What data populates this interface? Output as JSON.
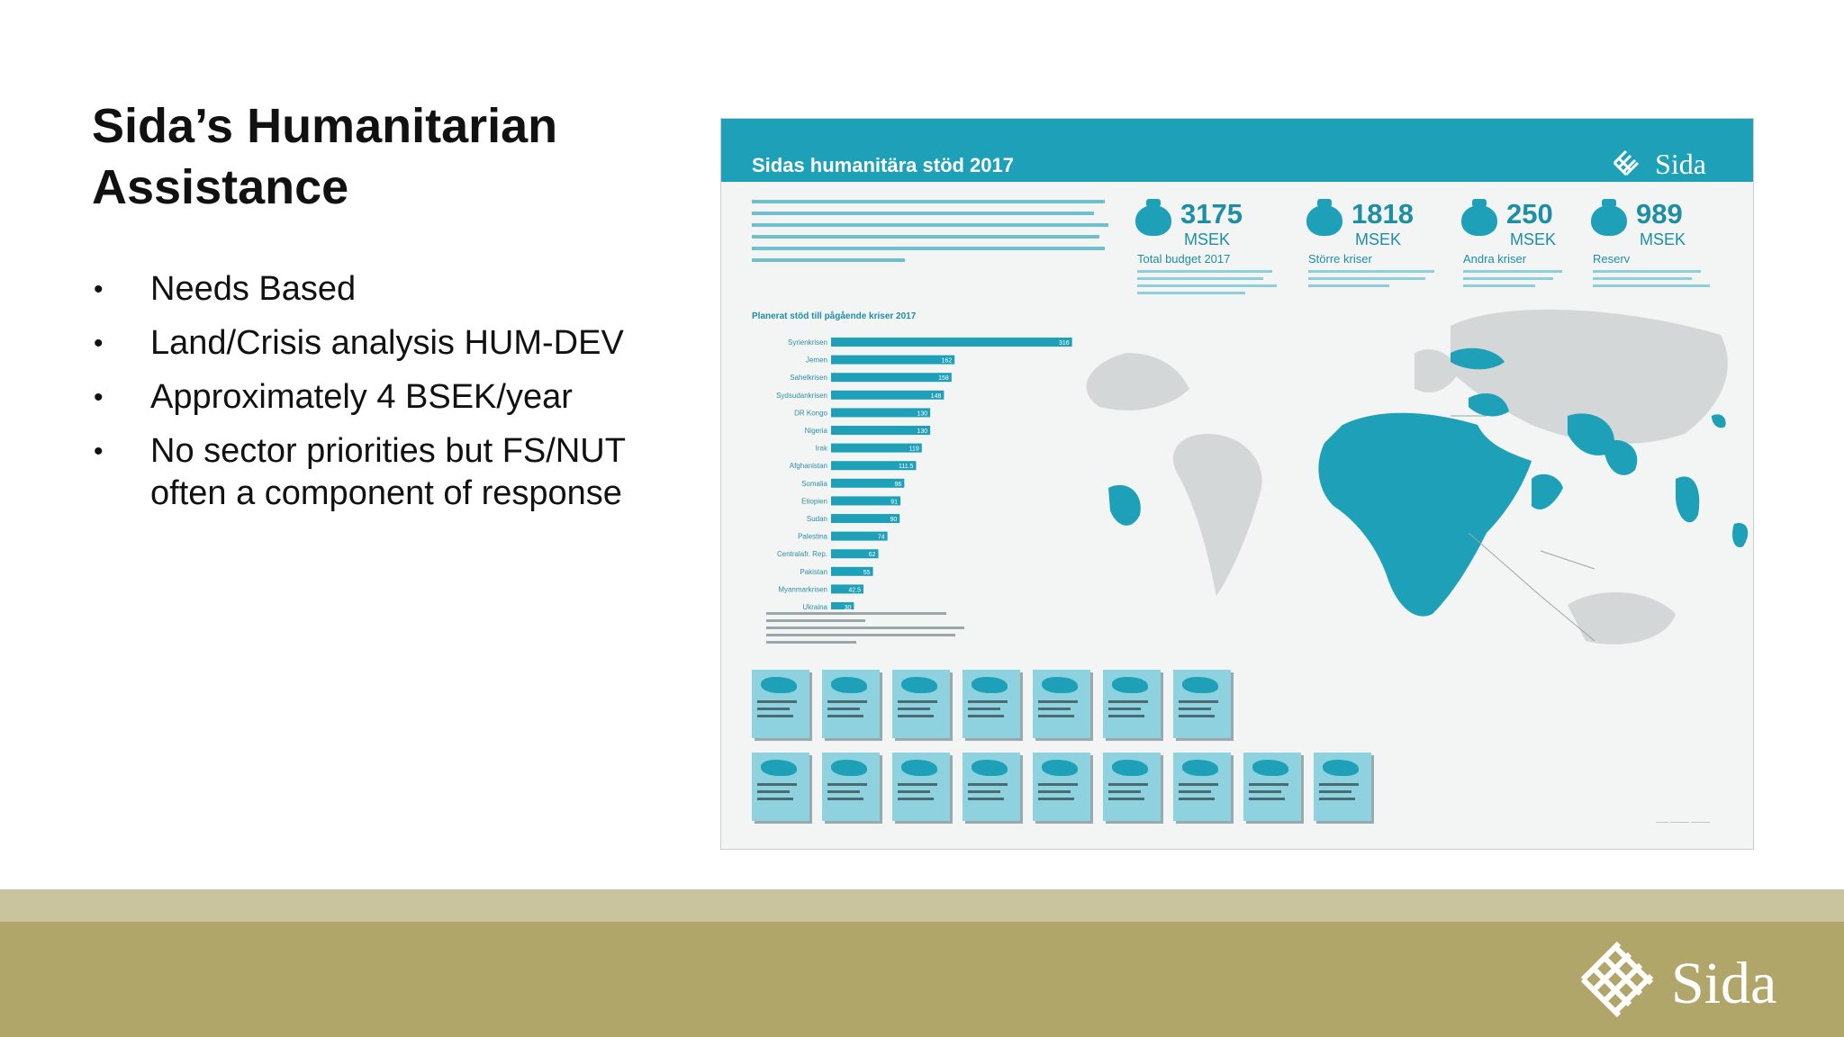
{
  "slide": {
    "title": "Sida’s Humanitarian Assistance",
    "bullets": [
      "Needs Based",
      "Land/Crisis analysis HUM-DEV",
      "Approximately 4 BSEK/year",
      "No sector priorities but FS/NUT often a component of response"
    ]
  },
  "infographic": {
    "title": "Sidas humanitära stöd 2017",
    "logo_text": "Sida",
    "budget": [
      {
        "value": "3175",
        "unit": "MSEK",
        "label": "Total budget 2017"
      },
      {
        "value": "1818",
        "unit": "MSEK",
        "label": "Större kriser"
      },
      {
        "value": "250",
        "unit": "MSEK",
        "label": "Andra kriser"
      },
      {
        "value": "989",
        "unit": "MSEK",
        "label": "Reserv"
      }
    ],
    "chart_title": "Planerat stöd till pågående kriser 2017"
  },
  "chart_data": {
    "type": "bar",
    "orientation": "horizontal",
    "categories": [
      "Syrienkrisen",
      "Jemen",
      "Sahelkrisen",
      "Sydsudankrisen",
      "DR Kongo",
      "Nigeria",
      "Irak",
      "Afghanistan",
      "Somalia",
      "Etiopien",
      "Sudan",
      "Palestina",
      "Centralafr. Rep.",
      "Pakistan",
      "Myanmarkrisen",
      "Ukraina"
    ],
    "values": [
      316,
      162,
      158,
      148,
      130,
      130,
      119,
      111.5,
      96,
      91,
      90,
      74,
      62,
      55,
      42.5,
      30
    ],
    "xlim": [
      0,
      340
    ],
    "bar_color": "#1ea1b8"
  },
  "colors": {
    "header": "#1ea1b8",
    "footer_light": "#c9c39e",
    "footer_dark": "#b1a66a"
  },
  "footer": {
    "logo_text": "Sida"
  }
}
